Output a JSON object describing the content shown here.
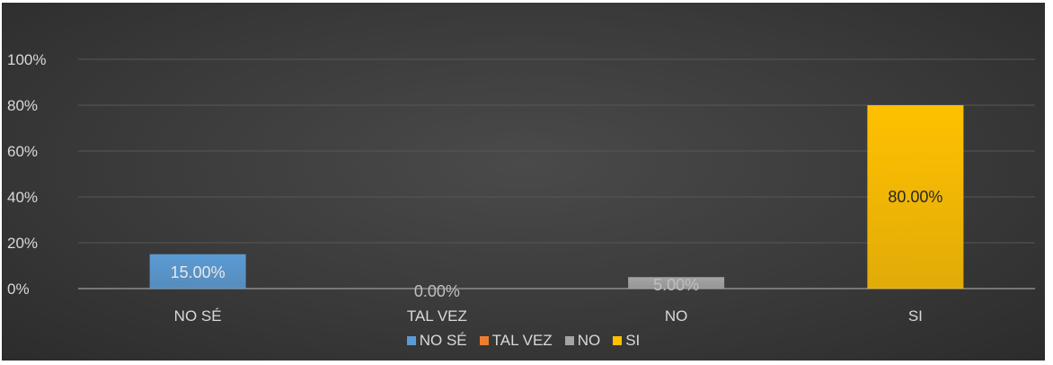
{
  "chart_data": {
    "type": "bar",
    "categories": [
      "NO SÉ",
      "TAL VEZ",
      "NO",
      "SI"
    ],
    "values": [
      15,
      0,
      5,
      80
    ],
    "data_labels": [
      "15.00%",
      "0.00%",
      "5.00%",
      "80.00%"
    ],
    "colors": [
      "#5b9bd5",
      "#ed7d31",
      "#a5a5a5",
      "#ffc000"
    ],
    "yticks": [
      "0%",
      "20%",
      "40%",
      "60%",
      "80%",
      "100%"
    ],
    "ylim": [
      0,
      100
    ],
    "grid": true,
    "legend": {
      "position": "bottom",
      "entries": [
        "NO SÉ",
        "TAL VEZ",
        "NO",
        "SI"
      ]
    },
    "background": "#3a3a3a"
  }
}
